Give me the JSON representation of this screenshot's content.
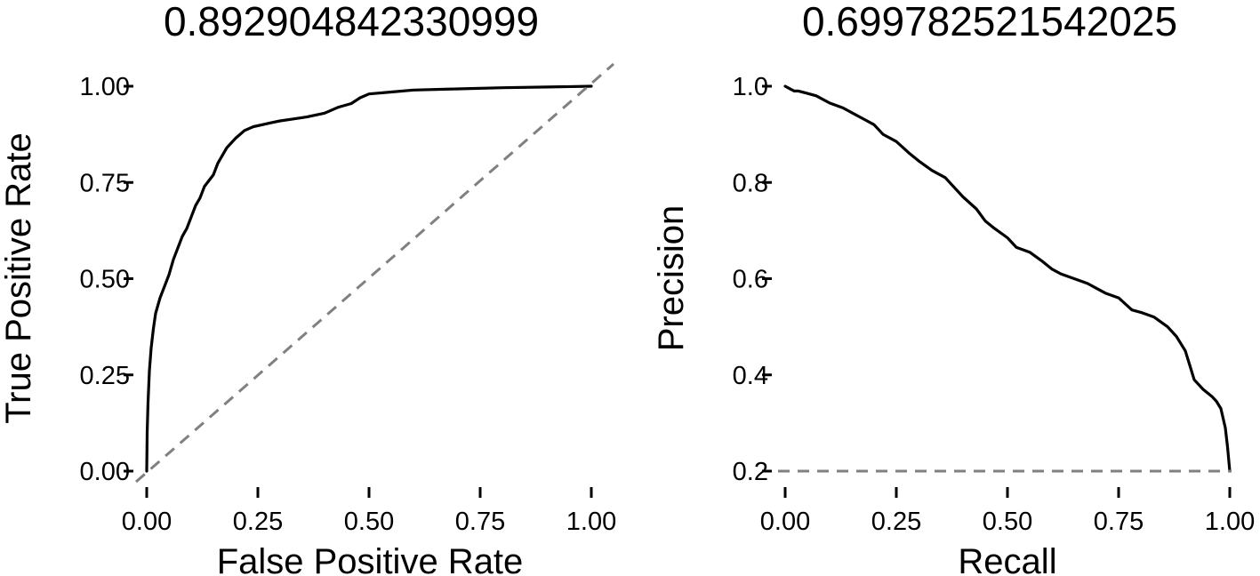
{
  "chart_data": [
    {
      "type": "line",
      "title": "0.892904842330999",
      "xlabel": "False Positive Rate",
      "ylabel": "True Positive Rate",
      "xlim": [
        0,
        1
      ],
      "ylim": [
        0,
        1
      ],
      "xticks": [
        "0.00",
        "0.25",
        "0.50",
        "0.75",
        "1.00"
      ],
      "yticks": [
        "0.00",
        "0.25",
        "0.50",
        "0.75",
        "1.00"
      ],
      "xtick_values": [
        0,
        0.25,
        0.5,
        0.75,
        1
      ],
      "ytick_values": [
        0,
        0.25,
        0.5,
        0.75,
        1
      ],
      "grid": false,
      "series": [
        {
          "x": [
            0,
            0.001,
            0.003,
            0.006,
            0.01,
            0.015,
            0.02,
            0.03,
            0.04,
            0.05,
            0.06,
            0.07,
            0.08,
            0.09,
            0.1,
            0.11,
            0.12,
            0.13,
            0.14,
            0.15,
            0.16,
            0.18,
            0.2,
            0.22,
            0.24,
            0.26,
            0.28,
            0.3,
            0.33,
            0.36,
            0.4,
            0.43,
            0.46,
            0.48,
            0.5,
            0.55,
            0.6,
            0.7,
            0.8,
            0.9,
            1.0
          ],
          "y": [
            0,
            0.1,
            0.18,
            0.26,
            0.32,
            0.37,
            0.41,
            0.45,
            0.48,
            0.51,
            0.55,
            0.58,
            0.61,
            0.63,
            0.66,
            0.69,
            0.71,
            0.74,
            0.755,
            0.77,
            0.8,
            0.84,
            0.865,
            0.885,
            0.895,
            0.9,
            0.905,
            0.91,
            0.915,
            0.92,
            0.93,
            0.945,
            0.955,
            0.97,
            0.98,
            0.985,
            0.99,
            0.993,
            0.996,
            0.998,
            1.0
          ],
          "color": "#000000"
        },
        {
          "x": [
            0,
            1
          ],
          "y": [
            0,
            1
          ],
          "color": "#808080",
          "style": "dashed"
        }
      ]
    },
    {
      "type": "line",
      "title": "0.699782521542025",
      "xlabel": "Recall",
      "ylabel": "Precision",
      "xlim": [
        0,
        1
      ],
      "ylim": [
        0.2,
        1
      ],
      "xticks": [
        "0.00",
        "0.25",
        "0.50",
        "0.75",
        "1.00"
      ],
      "yticks": [
        "0.2",
        "0.4",
        "0.6",
        "0.8",
        "1.0"
      ],
      "xtick_values": [
        0,
        0.25,
        0.5,
        0.75,
        1
      ],
      "ytick_values": [
        0.2,
        0.4,
        0.6,
        0.8,
        1.0
      ],
      "grid": false,
      "series": [
        {
          "x": [
            0,
            0.01,
            0.02,
            0.03,
            0.05,
            0.07,
            0.1,
            0.13,
            0.15,
            0.18,
            0.2,
            0.22,
            0.25,
            0.28,
            0.3,
            0.33,
            0.36,
            0.38,
            0.4,
            0.43,
            0.45,
            0.47,
            0.5,
            0.52,
            0.55,
            0.58,
            0.6,
            0.62,
            0.65,
            0.68,
            0.7,
            0.72,
            0.75,
            0.78,
            0.8,
            0.83,
            0.86,
            0.88,
            0.9,
            0.91,
            0.92,
            0.94,
            0.96,
            0.97,
            0.98,
            0.99,
            0.995,
            1.0
          ],
          "y": [
            1.0,
            0.995,
            0.99,
            0.99,
            0.985,
            0.98,
            0.965,
            0.955,
            0.945,
            0.93,
            0.92,
            0.9,
            0.885,
            0.86,
            0.845,
            0.825,
            0.81,
            0.79,
            0.77,
            0.745,
            0.72,
            0.705,
            0.685,
            0.665,
            0.655,
            0.635,
            0.62,
            0.61,
            0.6,
            0.59,
            0.58,
            0.57,
            0.56,
            0.535,
            0.53,
            0.52,
            0.5,
            0.48,
            0.45,
            0.42,
            0.39,
            0.37,
            0.355,
            0.345,
            0.33,
            0.29,
            0.25,
            0.2
          ],
          "color": "#000000"
        },
        {
          "x": [
            0,
            1
          ],
          "y": [
            0.2,
            0.2
          ],
          "color": "#808080",
          "style": "dashed"
        }
      ]
    }
  ]
}
